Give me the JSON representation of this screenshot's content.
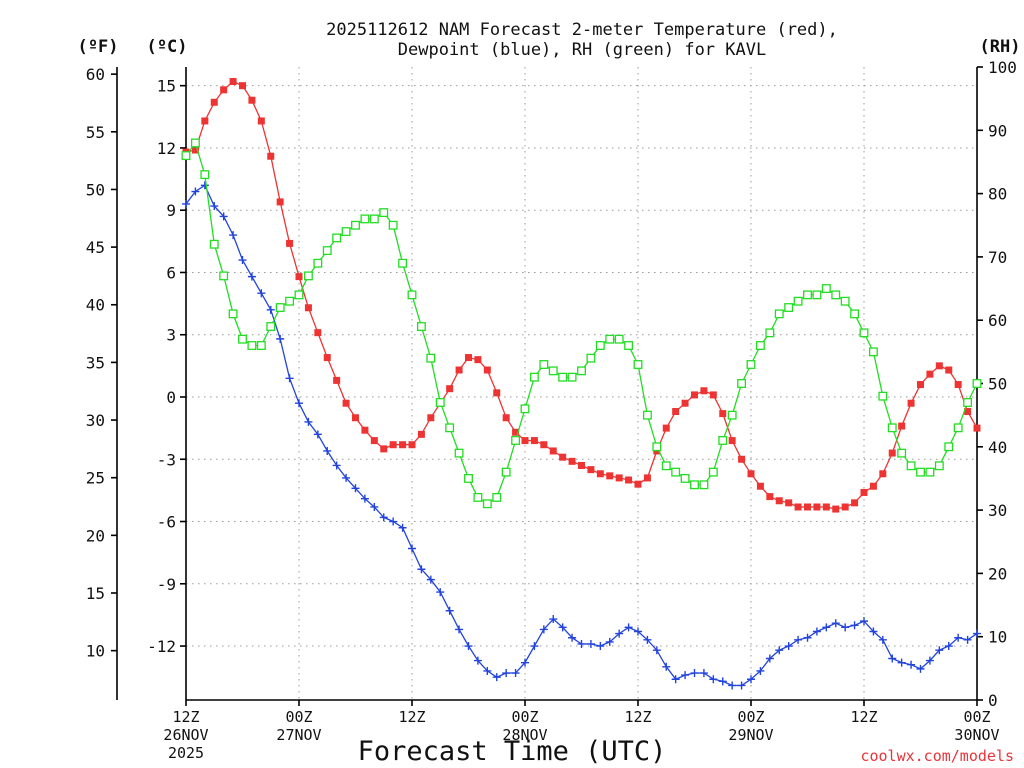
{
  "chart_data": {
    "type": "line",
    "title_line1": "2025112612 NAM Forecast 2-meter Temperature (red),",
    "title_line2": "Dewpoint (blue), RH (green) for KAVL",
    "xlabel": "Forecast Time (UTC)",
    "credit": "coolwx.com/models",
    "units": {
      "fahrenheit": "(ºF)",
      "celsius": "(ºC)",
      "rh": "(RH)"
    },
    "x_unit": "forecast hours from 2025-11-26 12Z",
    "xlim": [
      0,
      84
    ],
    "x_ticks": [
      {
        "hour": 0,
        "line1": "12Z",
        "line2": "26NOV",
        "line3": "2025"
      },
      {
        "hour": 12,
        "line1": "00Z",
        "line2": "27NOV",
        "line3": ""
      },
      {
        "hour": 24,
        "line1": "12Z",
        "line2": "",
        "line3": ""
      },
      {
        "hour": 36,
        "line1": "00Z",
        "line2": "28NOV",
        "line3": ""
      },
      {
        "hour": 48,
        "line1": "12Z",
        "line2": "",
        "line3": ""
      },
      {
        "hour": 60,
        "line1": "00Z",
        "line2": "29NOV",
        "line3": ""
      },
      {
        "hour": 72,
        "line1": "12Z",
        "line2": "",
        "line3": ""
      },
      {
        "hour": 84,
        "line1": "00Z",
        "line2": "30NOV",
        "line3": ""
      }
    ],
    "ylim_celsius": [
      -14.6,
      15.9
    ],
    "y_ticks_celsius": [
      "15",
      "12",
      "9",
      "6",
      "3",
      "0",
      "-3",
      "-6",
      "-9",
      "-12"
    ],
    "y_ticks_fahrenheit": [
      "60",
      "55",
      "50",
      "45",
      "40",
      "35",
      "30",
      "25",
      "20",
      "15",
      "10"
    ],
    "ylim_rh": [
      0,
      100
    ],
    "y_ticks_rh": [
      "100",
      "90",
      "80",
      "70",
      "60",
      "50",
      "40",
      "30",
      "20",
      "10",
      "0"
    ],
    "series": [
      {
        "name": "2-meter Temperature",
        "color": "#ee3333",
        "marker": "filled-square",
        "axis": "celsius",
        "points": [
          [
            0,
            11.8
          ],
          [
            1,
            11.9
          ],
          [
            2,
            13.3
          ],
          [
            3,
            14.2
          ],
          [
            4,
            14.8
          ],
          [
            5,
            15.2
          ],
          [
            6,
            15.0
          ],
          [
            7,
            14.3
          ],
          [
            8,
            13.3
          ],
          [
            9,
            11.6
          ],
          [
            10,
            9.4
          ],
          [
            11,
            7.4
          ],
          [
            12,
            5.8
          ],
          [
            13,
            4.3
          ],
          [
            14,
            3.1
          ],
          [
            15,
            1.9
          ],
          [
            16,
            0.8
          ],
          [
            17,
            -0.3
          ],
          [
            18,
            -1.0
          ],
          [
            19,
            -1.6
          ],
          [
            20,
            -2.1
          ],
          [
            21,
            -2.5
          ],
          [
            22,
            -2.3
          ],
          [
            23,
            -2.3
          ],
          [
            24,
            -2.3
          ],
          [
            25,
            -1.8
          ],
          [
            26,
            -1.0
          ],
          [
            27,
            -0.3
          ],
          [
            28,
            0.4
          ],
          [
            29,
            1.3
          ],
          [
            30,
            1.9
          ],
          [
            31,
            1.8
          ],
          [
            32,
            1.3
          ],
          [
            33,
            0.2
          ],
          [
            34,
            -1.0
          ],
          [
            35,
            -1.7
          ],
          [
            36,
            -2.1
          ],
          [
            37,
            -2.1
          ],
          [
            38,
            -2.3
          ],
          [
            39,
            -2.6
          ],
          [
            40,
            -2.9
          ],
          [
            41,
            -3.1
          ],
          [
            42,
            -3.3
          ],
          [
            43,
            -3.5
          ],
          [
            44,
            -3.7
          ],
          [
            45,
            -3.8
          ],
          [
            46,
            -3.9
          ],
          [
            47,
            -4.0
          ],
          [
            48,
            -4.2
          ],
          [
            49,
            -3.9
          ],
          [
            50,
            -2.6
          ],
          [
            51,
            -1.5
          ],
          [
            52,
            -0.7
          ],
          [
            53,
            -0.3
          ],
          [
            54,
            0.1
          ],
          [
            55,
            0.3
          ],
          [
            56,
            0.1
          ],
          [
            57,
            -0.8
          ],
          [
            58,
            -2.1
          ],
          [
            59,
            -3.0
          ],
          [
            60,
            -3.7
          ],
          [
            61,
            -4.3
          ],
          [
            62,
            -4.8
          ],
          [
            63,
            -5.0
          ],
          [
            64,
            -5.1
          ],
          [
            65,
            -5.3
          ],
          [
            66,
            -5.3
          ],
          [
            67,
            -5.3
          ],
          [
            68,
            -5.3
          ],
          [
            69,
            -5.4
          ],
          [
            70,
            -5.3
          ],
          [
            71,
            -5.1
          ],
          [
            72,
            -4.6
          ],
          [
            73,
            -4.3
          ],
          [
            74,
            -3.7
          ],
          [
            75,
            -2.7
          ],
          [
            76,
            -1.4
          ],
          [
            77,
            -0.3
          ],
          [
            78,
            0.6
          ],
          [
            79,
            1.1
          ],
          [
            80,
            1.5
          ],
          [
            81,
            1.3
          ],
          [
            82,
            0.6
          ],
          [
            83,
            -0.7
          ],
          [
            84,
            -1.5
          ]
        ]
      },
      {
        "name": "Dewpoint",
        "color": "#2244dd",
        "marker": "plus",
        "axis": "celsius",
        "points": [
          [
            0,
            9.3
          ],
          [
            1,
            9.9
          ],
          [
            2,
            10.2
          ],
          [
            3,
            9.2
          ],
          [
            4,
            8.7
          ],
          [
            5,
            7.8
          ],
          [
            6,
            6.6
          ],
          [
            7,
            5.8
          ],
          [
            8,
            5.0
          ],
          [
            9,
            4.2
          ],
          [
            10,
            2.8
          ],
          [
            11,
            0.9
          ],
          [
            12,
            -0.3
          ],
          [
            13,
            -1.2
          ],
          [
            14,
            -1.8
          ],
          [
            15,
            -2.6
          ],
          [
            16,
            -3.3
          ],
          [
            17,
            -3.9
          ],
          [
            18,
            -4.4
          ],
          [
            19,
            -4.9
          ],
          [
            20,
            -5.3
          ],
          [
            21,
            -5.8
          ],
          [
            22,
            -6.0
          ],
          [
            23,
            -6.3
          ],
          [
            24,
            -7.3
          ],
          [
            25,
            -8.3
          ],
          [
            26,
            -8.8
          ],
          [
            27,
            -9.4
          ],
          [
            28,
            -10.3
          ],
          [
            29,
            -11.2
          ],
          [
            30,
            -12.0
          ],
          [
            31,
            -12.7
          ],
          [
            32,
            -13.2
          ],
          [
            33,
            -13.5
          ],
          [
            34,
            -13.3
          ],
          [
            35,
            -13.3
          ],
          [
            36,
            -12.8
          ],
          [
            37,
            -12.0
          ],
          [
            38,
            -11.2
          ],
          [
            39,
            -10.7
          ],
          [
            40,
            -11.1
          ],
          [
            41,
            -11.6
          ],
          [
            42,
            -11.9
          ],
          [
            43,
            -11.9
          ],
          [
            44,
            -12.0
          ],
          [
            45,
            -11.8
          ],
          [
            46,
            -11.4
          ],
          [
            47,
            -11.1
          ],
          [
            48,
            -11.3
          ],
          [
            49,
            -11.7
          ],
          [
            50,
            -12.2
          ],
          [
            51,
            -13.0
          ],
          [
            52,
            -13.6
          ],
          [
            53,
            -13.4
          ],
          [
            54,
            -13.3
          ],
          [
            55,
            -13.3
          ],
          [
            56,
            -13.6
          ],
          [
            57,
            -13.7
          ],
          [
            58,
            -13.9
          ],
          [
            59,
            -13.9
          ],
          [
            60,
            -13.6
          ],
          [
            61,
            -13.2
          ],
          [
            62,
            -12.6
          ],
          [
            63,
            -12.2
          ],
          [
            64,
            -12.0
          ],
          [
            65,
            -11.7
          ],
          [
            66,
            -11.6
          ],
          [
            67,
            -11.3
          ],
          [
            68,
            -11.1
          ],
          [
            69,
            -10.9
          ],
          [
            70,
            -11.1
          ],
          [
            71,
            -11.0
          ],
          [
            72,
            -10.8
          ],
          [
            73,
            -11.3
          ],
          [
            74,
            -11.7
          ],
          [
            75,
            -12.6
          ],
          [
            76,
            -12.8
          ],
          [
            77,
            -12.9
          ],
          [
            78,
            -13.1
          ],
          [
            79,
            -12.7
          ],
          [
            80,
            -12.2
          ],
          [
            81,
            -12.0
          ],
          [
            82,
            -11.6
          ],
          [
            83,
            -11.7
          ],
          [
            84,
            -11.4
          ]
        ]
      },
      {
        "name": "RH",
        "color": "#22dd22",
        "marker": "open-square",
        "axis": "rh",
        "points": [
          [
            0,
            86
          ],
          [
            1,
            88
          ],
          [
            2,
            83
          ],
          [
            3,
            72
          ],
          [
            4,
            67
          ],
          [
            5,
            61
          ],
          [
            6,
            57
          ],
          [
            7,
            56
          ],
          [
            8,
            56
          ],
          [
            9,
            59
          ],
          [
            10,
            62
          ],
          [
            11,
            63
          ],
          [
            12,
            64
          ],
          [
            13,
            67
          ],
          [
            14,
            69
          ],
          [
            15,
            71
          ],
          [
            16,
            73
          ],
          [
            17,
            74
          ],
          [
            18,
            75
          ],
          [
            19,
            76
          ],
          [
            20,
            76
          ],
          [
            21,
            77
          ],
          [
            22,
            75
          ],
          [
            23,
            69
          ],
          [
            24,
            64
          ],
          [
            25,
            59
          ],
          [
            26,
            54
          ],
          [
            27,
            47
          ],
          [
            28,
            43
          ],
          [
            29,
            39
          ],
          [
            30,
            35
          ],
          [
            31,
            32
          ],
          [
            32,
            31
          ],
          [
            33,
            32
          ],
          [
            34,
            36
          ],
          [
            35,
            41
          ],
          [
            36,
            46
          ],
          [
            37,
            51
          ],
          [
            38,
            53
          ],
          [
            39,
            52
          ],
          [
            40,
            51
          ],
          [
            41,
            51
          ],
          [
            42,
            52
          ],
          [
            43,
            54
          ],
          [
            44,
            56
          ],
          [
            45,
            57
          ],
          [
            46,
            57
          ],
          [
            47,
            56
          ],
          [
            48,
            53
          ],
          [
            49,
            45
          ],
          [
            50,
            40
          ],
          [
            51,
            37
          ],
          [
            52,
            36
          ],
          [
            53,
            35
          ],
          [
            54,
            34
          ],
          [
            55,
            34
          ],
          [
            56,
            36
          ],
          [
            57,
            41
          ],
          [
            58,
            45
          ],
          [
            59,
            50
          ],
          [
            60,
            53
          ],
          [
            61,
            56
          ],
          [
            62,
            58
          ],
          [
            63,
            61
          ],
          [
            64,
            62
          ],
          [
            65,
            63
          ],
          [
            66,
            64
          ],
          [
            67,
            64
          ],
          [
            68,
            65
          ],
          [
            69,
            64
          ],
          [
            70,
            63
          ],
          [
            71,
            61
          ],
          [
            72,
            58
          ],
          [
            73,
            55
          ],
          [
            74,
            48
          ],
          [
            75,
            43
          ],
          [
            76,
            39
          ],
          [
            77,
            37
          ],
          [
            78,
            36
          ],
          [
            79,
            36
          ],
          [
            80,
            37
          ],
          [
            81,
            40
          ],
          [
            82,
            43
          ],
          [
            83,
            47
          ],
          [
            84,
            50
          ]
        ]
      }
    ]
  }
}
